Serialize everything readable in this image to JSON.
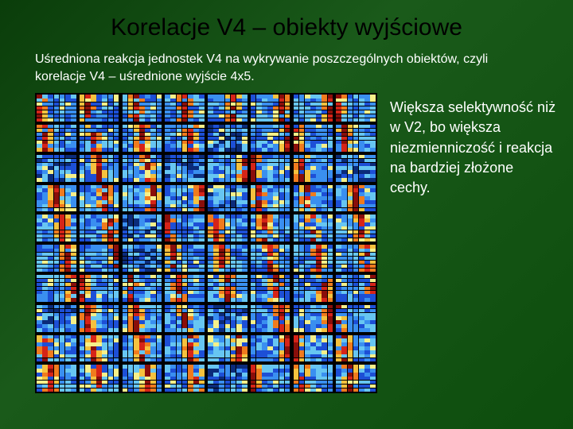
{
  "slide": {
    "title": "Korelacje V4 – obiekty wyjściowe",
    "subtitle": "Uśredniona reakcja jednostek V4 na wykrywanie poszczególnych obiektów, czyli korelacje V4 – uśrednione wyjście 4x5.",
    "sidetext": "Większa selektywność niż w V2, bo większa niezmienniczość i reakcja na bardziej złożone cechy."
  },
  "heatmap": {
    "type": "heatmap",
    "grid_cols": 8,
    "grid_rows": 10,
    "panel_cols": 7,
    "panel_rows": 7,
    "background_color": "#000000",
    "colormap": [
      "#0b2b7a",
      "#1d4fd6",
      "#3a8ff0",
      "#67c6f2",
      "#a6e6e6",
      "#f6f08a",
      "#f6c23e",
      "#f07b1e",
      "#d62418",
      "#8a0e0a"
    ],
    "note": "cell values are procedurally drawn from colormap to visually approximate the original correlation heatmap; exact per-cell values are not readable from the screenshot"
  },
  "style": {
    "title_color": "#000000",
    "title_fontsize": 30,
    "body_color": "#ffffff",
    "body_fontsize": 16,
    "sidetext_fontsize": 18,
    "background_gradient": [
      "#0a3d0a",
      "#1a5a1a",
      "#0d4d0d"
    ]
  }
}
